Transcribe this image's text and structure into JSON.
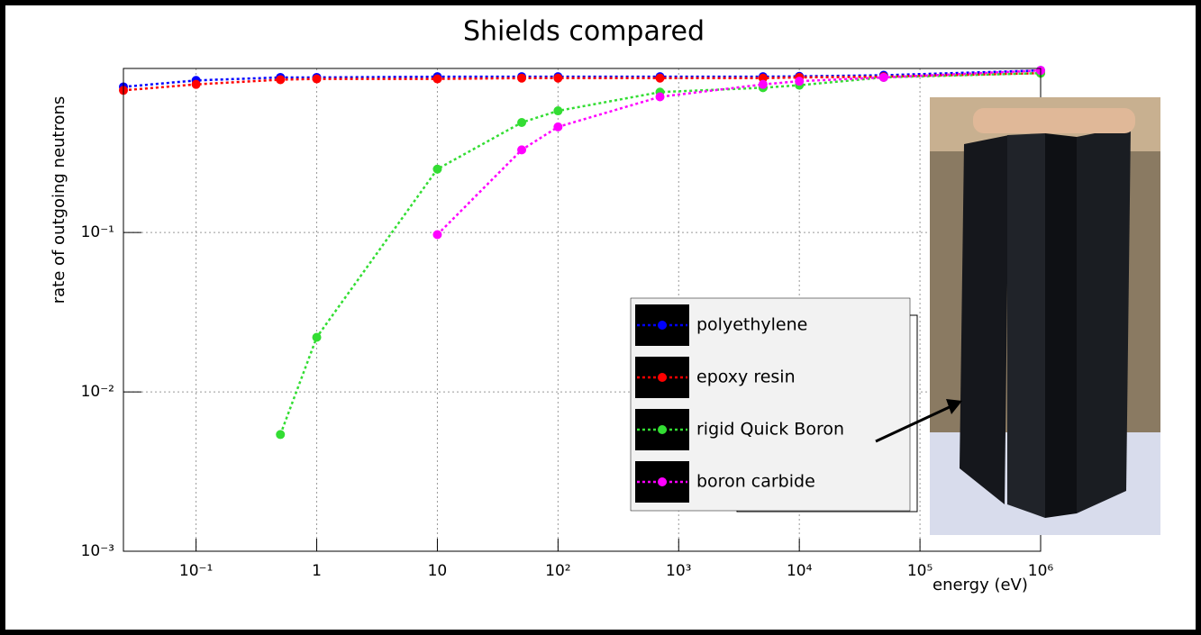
{
  "chart_data": {
    "type": "line",
    "title": "Shields compared",
    "x_label": "energy (eV)",
    "y_label": "rate of outgoing neutrons",
    "x": [
      0.025,
      0.1,
      0.5,
      1,
      10,
      50,
      100,
      700,
      5000,
      10000,
      50000,
      1000000
    ],
    "series": [
      {
        "name": "polyethylene",
        "color": "#0000ff",
        "values": [
          0.82,
          0.9,
          0.94,
          0.94,
          0.95,
          0.95,
          0.95,
          0.95,
          0.95,
          0.955,
          0.97,
          1.04
        ]
      },
      {
        "name": "epoxy resin",
        "color": "#ff0000",
        "values": [
          0.78,
          0.85,
          0.91,
          0.92,
          0.92,
          0.93,
          0.93,
          0.93,
          0.93,
          0.94,
          0.95,
          1.0
        ]
      },
      {
        "name": "rigid Quick Boron",
        "color": "#33dd33",
        "values": [
          null,
          null,
          0.0054,
          0.022,
          0.25,
          0.49,
          0.58,
          0.76,
          0.81,
          0.84,
          0.94,
          1.0
        ]
      },
      {
        "name": "boron carbide",
        "color": "#ff00ff",
        "values": [
          null,
          null,
          null,
          null,
          0.097,
          0.33,
          0.46,
          0.71,
          0.85,
          0.89,
          0.94,
          1.04
        ]
      }
    ],
    "xlim": [
      0.025,
      1000000
    ],
    "ylim": [
      0.001,
      1.07
    ],
    "xticks": [
      {
        "value": 0.1,
        "label": "10⁻¹"
      },
      1,
      10,
      {
        "value": 100,
        "label": "10²"
      },
      {
        "value": 1000,
        "label": "10³"
      },
      {
        "value": 10000,
        "label": "10⁴"
      },
      {
        "value": 100000,
        "label": "10⁵"
      },
      {
        "value": 1000000,
        "label": "10⁶"
      }
    ],
    "yticks": [
      {
        "value": 0.001,
        "label": "10⁻³"
      },
      {
        "value": 0.01,
        "label": "10⁻²"
      },
      {
        "value": 0.1,
        "label": "10⁻¹"
      }
    ],
    "log_x": true,
    "log_y": true,
    "grid": true,
    "legend": "lower right"
  }
}
